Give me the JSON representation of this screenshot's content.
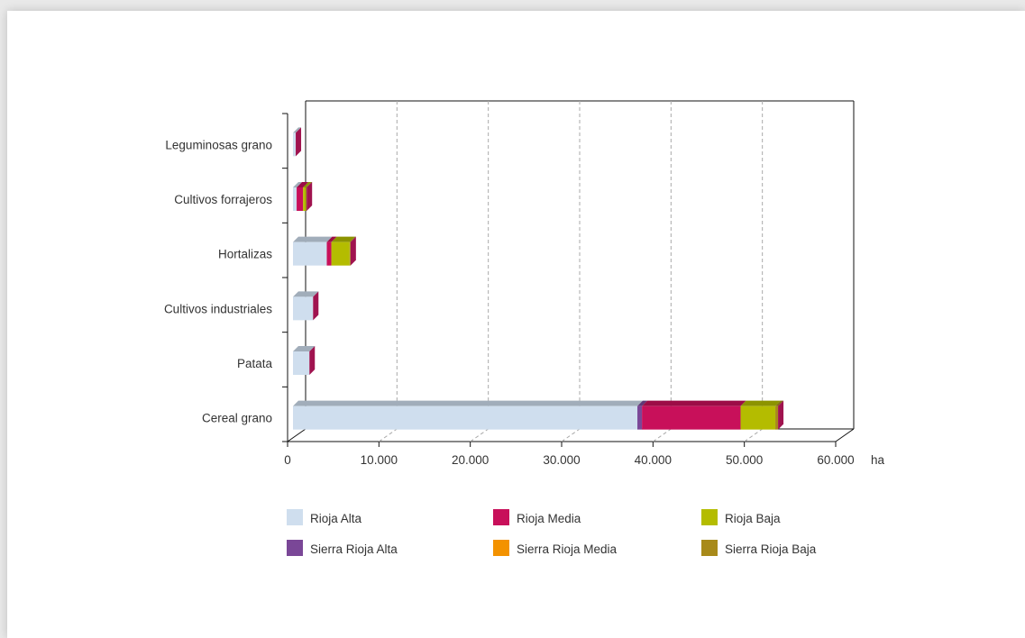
{
  "chart_data": {
    "type": "bar",
    "orientation": "horizontal",
    "stacked": true,
    "style": "3d",
    "categories": [
      "Leguminosas grano",
      "Cultivos forrajeros",
      "Hortalizas",
      "Cultivos industriales",
      "Patata",
      "Cereal grano"
    ],
    "series": [
      {
        "name": "Rioja Alta",
        "color": "#cfdeee",
        "values": [
          300,
          400,
          3700,
          2200,
          1800,
          37700
        ]
      },
      {
        "name": "Sierra Rioja Alta",
        "color": "#7a4797",
        "values": [
          0,
          0,
          0,
          0,
          0,
          500
        ]
      },
      {
        "name": "Rioja Media",
        "color": "#c8105a",
        "values": [
          0,
          700,
          500,
          0,
          0,
          10800
        ]
      },
      {
        "name": "Sierra Rioja Media",
        "color": "#f39200",
        "values": [
          0,
          0,
          0,
          0,
          0,
          0
        ]
      },
      {
        "name": "Rioja Baja",
        "color": "#b4bc00",
        "values": [
          0,
          300,
          2000,
          0,
          0,
          3800
        ]
      },
      {
        "name": "Sierra Rioja Baja",
        "color": "#a88a1a",
        "values": [
          0,
          100,
          100,
          0,
          0,
          300
        ]
      }
    ],
    "x_ticks": [
      "0",
      "10.000",
      "20.000",
      "30.000",
      "40.000",
      "50.000",
      "60.000"
    ],
    "x_unit": "ha",
    "xlim": [
      0,
      60000
    ],
    "grid": "vertical dashed",
    "legend_position": "bottom"
  },
  "legend": {
    "items": [
      {
        "label": "Rioja Alta",
        "color": "#cfdeee"
      },
      {
        "label": "Rioja Media",
        "color": "#c8105a"
      },
      {
        "label": "Rioja Baja",
        "color": "#b4bc00"
      },
      {
        "label": "Sierra Rioja Alta",
        "color": "#7a4797"
      },
      {
        "label": "Sierra Rioja Media",
        "color": "#f39200"
      },
      {
        "label": "Sierra Rioja Baja",
        "color": "#a88a1a"
      }
    ]
  }
}
